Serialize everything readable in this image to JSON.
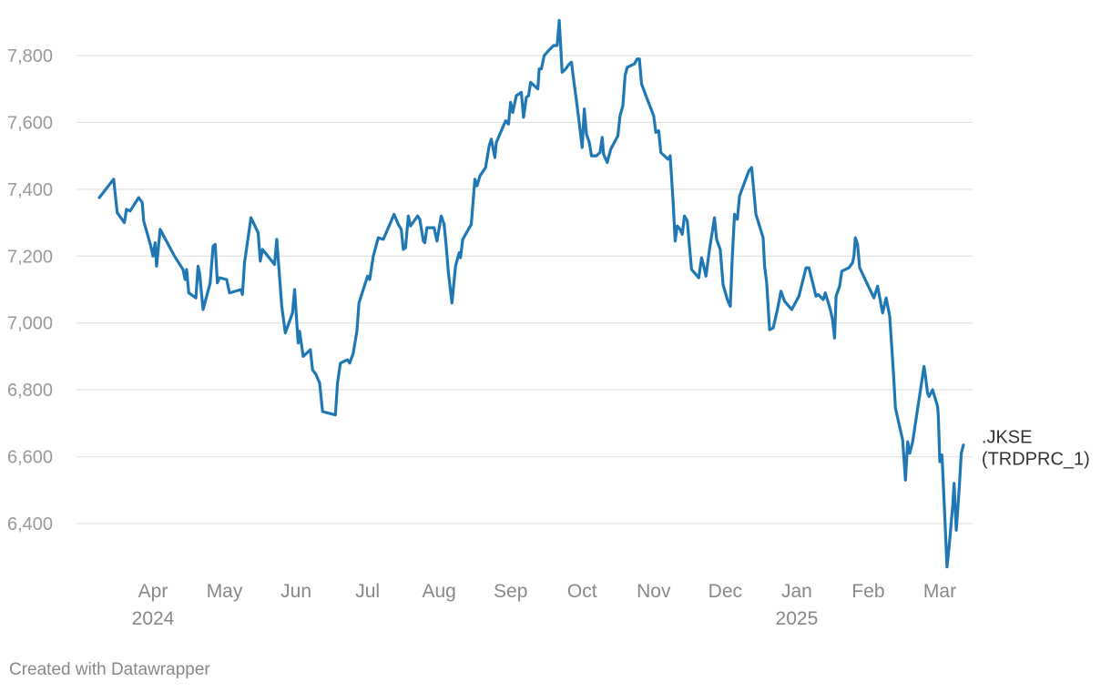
{
  "chart_data": {
    "type": "line",
    "title": "",
    "xlabel": "",
    "ylabel": "",
    "ylim": [
      6250,
      7900
    ],
    "y_ticks": [
      6400,
      6600,
      6800,
      7000,
      7200,
      7400,
      7600,
      7800
    ],
    "y_tick_labels": [
      "6,400",
      "6,600",
      "6,800",
      "7,000",
      "7,200",
      "7,400",
      "7,600",
      "7,800"
    ],
    "x_ticks": [
      {
        "month": 4,
        "label": "Apr",
        "year_label": "2024"
      },
      {
        "month": 5,
        "label": "May",
        "year_label": ""
      },
      {
        "month": 6,
        "label": "Jun",
        "year_label": ""
      },
      {
        "month": 7,
        "label": "Jul",
        "year_label": ""
      },
      {
        "month": 8,
        "label": "Aug",
        "year_label": ""
      },
      {
        "month": 9,
        "label": "Sep",
        "year_label": ""
      },
      {
        "month": 10,
        "label": "Oct",
        "year_label": ""
      },
      {
        "month": 11,
        "label": "Nov",
        "year_label": ""
      },
      {
        "month": 12,
        "label": "Dec",
        "year_label": ""
      },
      {
        "month": 13,
        "label": "Jan",
        "year_label": "2025"
      },
      {
        "month": 14,
        "label": "Feb",
        "year_label": ""
      },
      {
        "month": 15,
        "label": "Mar",
        "year_label": ""
      }
    ],
    "grid": true,
    "series": [
      {
        "name": ".JKSE\n(TRDPRC_1)",
        "label_lines": [
          ".JKSE",
          "(TRDPRC_1)"
        ],
        "color": "#1f77b4",
        "points": [
          [
            3.25,
            7375
          ],
          [
            3.45,
            7430
          ],
          [
            3.5,
            7330
          ],
          [
            3.6,
            7300
          ],
          [
            3.63,
            7340
          ],
          [
            3.68,
            7335
          ],
          [
            3.8,
            7375
          ],
          [
            3.85,
            7360
          ],
          [
            3.87,
            7305
          ],
          [
            3.97,
            7230
          ],
          [
            4.0,
            7200
          ],
          [
            4.03,
            7240
          ],
          [
            4.05,
            7170
          ],
          [
            4.1,
            7280
          ],
          [
            4.15,
            7260
          ],
          [
            4.3,
            7200
          ],
          [
            4.42,
            7160
          ],
          [
            4.45,
            7130
          ],
          [
            4.47,
            7160
          ],
          [
            4.5,
            7090
          ],
          [
            4.6,
            7075
          ],
          [
            4.63,
            7170
          ],
          [
            4.65,
            7150
          ],
          [
            4.7,
            7040
          ],
          [
            4.8,
            7120
          ],
          [
            4.84,
            7230
          ],
          [
            4.87,
            7235
          ],
          [
            4.9,
            7120
          ],
          [
            4.93,
            7135
          ],
          [
            5.03,
            7130
          ],
          [
            5.07,
            7090
          ],
          [
            5.23,
            7100
          ],
          [
            5.25,
            7085
          ],
          [
            5.28,
            7180
          ],
          [
            5.37,
            7315
          ],
          [
            5.47,
            7270
          ],
          [
            5.5,
            7185
          ],
          [
            5.53,
            7220
          ],
          [
            5.7,
            7175
          ],
          [
            5.73,
            7250
          ],
          [
            5.8,
            7050
          ],
          [
            5.85,
            6970
          ],
          [
            5.95,
            7030
          ],
          [
            5.98,
            7100
          ],
          [
            6.03,
            6940
          ],
          [
            6.05,
            6975
          ],
          [
            6.1,
            6900
          ],
          [
            6.2,
            6920
          ],
          [
            6.23,
            6860
          ],
          [
            6.28,
            6845
          ],
          [
            6.33,
            6820
          ],
          [
            6.37,
            6735
          ],
          [
            6.55,
            6725
          ],
          [
            6.58,
            6820
          ],
          [
            6.62,
            6880
          ],
          [
            6.72,
            6890
          ],
          [
            6.75,
            6880
          ],
          [
            6.8,
            6910
          ],
          [
            6.85,
            6975
          ],
          [
            6.88,
            7060
          ],
          [
            7.0,
            7140
          ],
          [
            7.03,
            7130
          ],
          [
            7.08,
            7200
          ],
          [
            7.15,
            7255
          ],
          [
            7.22,
            7250
          ],
          [
            7.32,
            7300
          ],
          [
            7.37,
            7325
          ],
          [
            7.43,
            7295
          ],
          [
            7.47,
            7280
          ],
          [
            7.5,
            7220
          ],
          [
            7.53,
            7225
          ],
          [
            7.57,
            7320
          ],
          [
            7.6,
            7290
          ],
          [
            7.7,
            7320
          ],
          [
            7.73,
            7310
          ],
          [
            7.78,
            7245
          ],
          [
            7.8,
            7240
          ],
          [
            7.83,
            7285
          ],
          [
            7.93,
            7285
          ],
          [
            7.97,
            7245
          ],
          [
            8.03,
            7320
          ],
          [
            8.07,
            7295
          ],
          [
            8.1,
            7230
          ],
          [
            8.13,
            7150
          ],
          [
            8.18,
            7060
          ],
          [
            8.23,
            7170
          ],
          [
            8.28,
            7210
          ],
          [
            8.3,
            7195
          ],
          [
            8.33,
            7250
          ],
          [
            8.45,
            7295
          ],
          [
            8.5,
            7430
          ],
          [
            8.53,
            7410
          ],
          [
            8.57,
            7440
          ],
          [
            8.65,
            7465
          ],
          [
            8.7,
            7530
          ],
          [
            8.73,
            7550
          ],
          [
            8.78,
            7495
          ],
          [
            8.8,
            7540
          ],
          [
            8.87,
            7575
          ],
          [
            8.93,
            7605
          ],
          [
            8.97,
            7595
          ],
          [
            9.0,
            7660
          ],
          [
            9.03,
            7630
          ],
          [
            9.08,
            7680
          ],
          [
            9.15,
            7690
          ],
          [
            9.18,
            7615
          ],
          [
            9.22,
            7675
          ],
          [
            9.25,
            7680
          ],
          [
            9.28,
            7720
          ],
          [
            9.38,
            7700
          ],
          [
            9.4,
            7760
          ],
          [
            9.43,
            7760
          ],
          [
            9.47,
            7800
          ],
          [
            9.53,
            7815
          ],
          [
            9.6,
            7830
          ],
          [
            9.65,
            7830
          ],
          [
            9.68,
            7905
          ],
          [
            9.72,
            7750
          ],
          [
            9.77,
            7760
          ],
          [
            9.82,
            7775
          ],
          [
            9.85,
            7780
          ],
          [
            9.87,
            7745
          ],
          [
            9.92,
            7665
          ],
          [
            9.97,
            7580
          ],
          [
            10.0,
            7525
          ],
          [
            10.03,
            7640
          ],
          [
            10.06,
            7565
          ],
          [
            10.1,
            7540
          ],
          [
            10.13,
            7500
          ],
          [
            10.2,
            7500
          ],
          [
            10.25,
            7510
          ],
          [
            10.28,
            7555
          ],
          [
            10.3,
            7505
          ],
          [
            10.35,
            7480
          ],
          [
            10.4,
            7520
          ],
          [
            10.45,
            7540
          ],
          [
            10.5,
            7560
          ],
          [
            10.53,
            7620
          ],
          [
            10.57,
            7650
          ],
          [
            10.6,
            7740
          ],
          [
            10.63,
            7765
          ],
          [
            10.73,
            7775
          ],
          [
            10.77,
            7790
          ],
          [
            10.8,
            7790
          ],
          [
            10.83,
            7715
          ],
          [
            10.9,
            7675
          ],
          [
            11.0,
            7620
          ],
          [
            11.03,
            7570
          ],
          [
            11.07,
            7575
          ],
          [
            11.1,
            7510
          ],
          [
            11.2,
            7490
          ],
          [
            11.23,
            7500
          ],
          [
            11.27,
            7370
          ],
          [
            11.3,
            7245
          ],
          [
            11.33,
            7290
          ],
          [
            11.37,
            7280
          ],
          [
            11.4,
            7265
          ],
          [
            11.43,
            7320
          ],
          [
            11.47,
            7305
          ],
          [
            11.53,
            7160
          ],
          [
            11.63,
            7135
          ],
          [
            11.67,
            7195
          ],
          [
            11.7,
            7170
          ],
          [
            11.73,
            7140
          ],
          [
            11.78,
            7220
          ],
          [
            11.85,
            7315
          ],
          [
            11.88,
            7250
          ],
          [
            11.93,
            7220
          ],
          [
            11.97,
            7115
          ],
          [
            12.03,
            7070
          ],
          [
            12.07,
            7050
          ],
          [
            12.1,
            7200
          ],
          [
            12.13,
            7325
          ],
          [
            12.17,
            7310
          ],
          [
            12.2,
            7380
          ],
          [
            12.33,
            7455
          ],
          [
            12.37,
            7465
          ],
          [
            12.43,
            7325
          ],
          [
            12.53,
            7255
          ],
          [
            12.55,
            7170
          ],
          [
            12.58,
            7120
          ],
          [
            12.62,
            6980
          ],
          [
            12.67,
            6985
          ],
          [
            12.73,
            7040
          ],
          [
            12.78,
            7095
          ],
          [
            12.83,
            7065
          ],
          [
            12.93,
            7040
          ],
          [
            13.03,
            7080
          ],
          [
            13.13,
            7165
          ],
          [
            13.17,
            7165
          ],
          [
            13.27,
            7080
          ],
          [
            13.3,
            7085
          ],
          [
            13.37,
            7070
          ],
          [
            13.4,
            7090
          ],
          [
            13.47,
            7040
          ],
          [
            13.5,
            7010
          ],
          [
            13.53,
            6955
          ],
          [
            13.55,
            7080
          ],
          [
            13.6,
            7110
          ],
          [
            13.63,
            7155
          ],
          [
            13.73,
            7165
          ],
          [
            13.78,
            7180
          ],
          [
            13.8,
            7200
          ],
          [
            13.82,
            7255
          ],
          [
            13.85,
            7235
          ],
          [
            13.88,
            7165
          ],
          [
            14.0,
            7110
          ],
          [
            14.08,
            7075
          ],
          [
            14.13,
            7110
          ],
          [
            14.2,
            7030
          ],
          [
            14.25,
            7075
          ],
          [
            14.3,
            7020
          ],
          [
            14.35,
            6860
          ],
          [
            14.38,
            6745
          ],
          [
            14.48,
            6650
          ],
          [
            14.52,
            6530
          ],
          [
            14.55,
            6645
          ],
          [
            14.58,
            6610
          ],
          [
            14.62,
            6645
          ],
          [
            14.73,
            6800
          ],
          [
            14.78,
            6870
          ],
          [
            14.8,
            6840
          ],
          [
            14.83,
            6790
          ],
          [
            14.85,
            6780
          ],
          [
            14.9,
            6800
          ],
          [
            14.97,
            6750
          ],
          [
            14.98,
            6720
          ],
          [
            15.0,
            6585
          ],
          [
            15.03,
            6605
          ],
          [
            15.07,
            6420
          ],
          [
            15.1,
            6270
          ],
          [
            15.13,
            6330
          ],
          [
            15.18,
            6450
          ],
          [
            15.2,
            6520
          ],
          [
            15.23,
            6380
          ],
          [
            15.27,
            6500
          ],
          [
            15.3,
            6610
          ],
          [
            15.33,
            6635
          ]
        ]
      }
    ],
    "footer": "Created with Datawrapper"
  }
}
